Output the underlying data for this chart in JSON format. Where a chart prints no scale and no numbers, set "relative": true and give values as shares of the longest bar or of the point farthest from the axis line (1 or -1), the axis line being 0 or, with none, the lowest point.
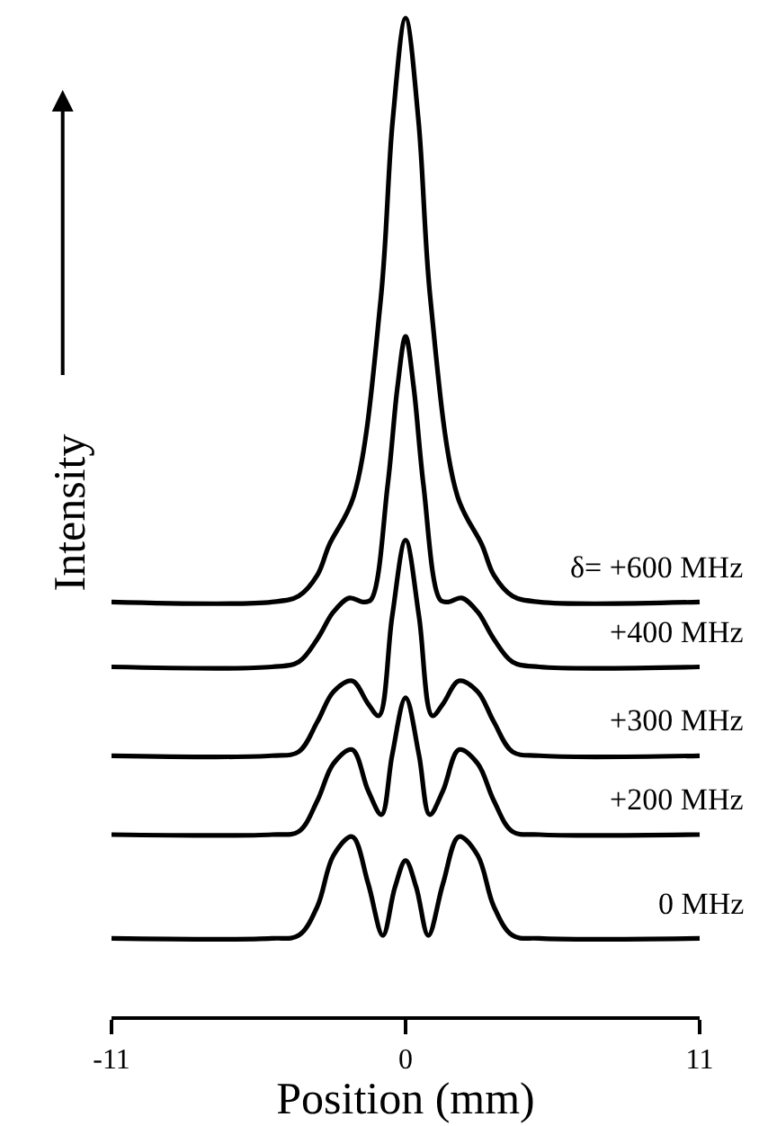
{
  "chart_data": {
    "type": "line",
    "relative": true,
    "xlabel": "Position (mm)",
    "ylabel": "Intensity",
    "xlim": [
      -11,
      11
    ],
    "xticks": [
      -11,
      0,
      11
    ],
    "legend": false,
    "marker": "none",
    "line_style": "solid",
    "series": [
      {
        "name": "0 MHz",
        "color": "#000000",
        "x": [
          -11,
          -5,
          -4,
          -3.3,
          -2.7,
          -2,
          -1.4,
          -0.85,
          -0.4,
          0,
          0.4,
          0.85,
          1.4,
          2,
          2.7,
          3.3,
          4,
          5,
          11
        ],
        "values": [
          0.078,
          0.078,
          0.081,
          0.11,
          0.161,
          0.18,
          0.133,
          0.081,
          0.129,
          0.156,
          0.129,
          0.081,
          0.133,
          0.18,
          0.161,
          0.11,
          0.081,
          0.078,
          0.078
        ]
      },
      {
        "name": "+200 MHz",
        "color": "#000000",
        "x": [
          -11,
          -5,
          -4,
          -3.3,
          -2.7,
          -2,
          -1.4,
          -0.9,
          -0.5,
          0,
          0.5,
          0.9,
          1.4,
          2,
          2.7,
          3.3,
          4,
          5,
          11
        ],
        "values": [
          0.182,
          0.182,
          0.185,
          0.216,
          0.253,
          0.267,
          0.226,
          0.202,
          0.262,
          0.319,
          0.262,
          0.202,
          0.226,
          0.267,
          0.253,
          0.216,
          0.185,
          0.182,
          0.182
        ]
      },
      {
        "name": "+300 MHz",
        "color": "#000000",
        "x": [
          -11,
          -5,
          -4,
          -3.3,
          -2.7,
          -2,
          -1.4,
          -1,
          -0.5,
          0,
          0.5,
          1,
          1.4,
          2,
          2.7,
          3.3,
          4,
          5,
          11
        ],
        "values": [
          0.261,
          0.261,
          0.265,
          0.295,
          0.325,
          0.336,
          0.313,
          0.301,
          0.401,
          0.477,
          0.401,
          0.301,
          0.313,
          0.336,
          0.325,
          0.295,
          0.265,
          0.261,
          0.261
        ]
      },
      {
        "name": "+400 MHz",
        "color": "#000000",
        "x": [
          -11,
          -5,
          -4,
          -3.3,
          -2.7,
          -2.1,
          -1.6,
          -1.3,
          -0.67,
          -0.3,
          0,
          0.3,
          0.67,
          1.3,
          1.6,
          2.1,
          2.7,
          3.3,
          4,
          5,
          11
        ],
        "values": [
          0.35,
          0.35,
          0.355,
          0.378,
          0.405,
          0.419,
          0.415,
          0.417,
          0.532,
          0.631,
          0.681,
          0.631,
          0.532,
          0.417,
          0.415,
          0.419,
          0.405,
          0.378,
          0.355,
          0.35,
          0.35
        ]
      },
      {
        "name": "δ= +600 MHz",
        "color": "#000000",
        "x": [
          -11,
          -5,
          -4,
          -3.3,
          -2.86,
          -1.94,
          -0.93,
          -0.48,
          0,
          0.48,
          0.93,
          1.94,
          2.86,
          3.3,
          4,
          5,
          11
        ],
        "values": [
          0.415,
          0.415,
          0.421,
          0.442,
          0.472,
          0.521,
          0.718,
          0.898,
          1.0,
          0.898,
          0.718,
          0.521,
          0.472,
          0.442,
          0.421,
          0.415,
          0.415
        ]
      }
    ]
  }
}
